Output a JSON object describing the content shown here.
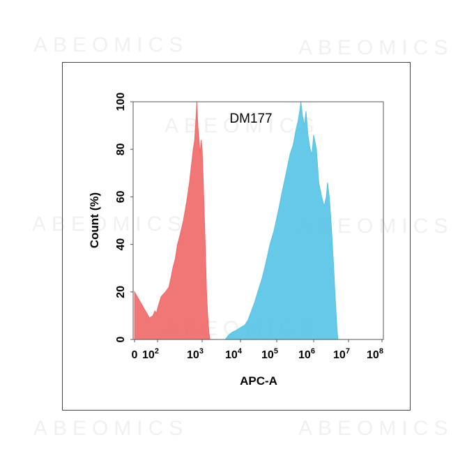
{
  "watermark": "ABEOMICS",
  "chart_data": {
    "type": "area",
    "title": "DM177",
    "xlabel": "APC-A",
    "ylabel": "Count (%)",
    "xscale": "log",
    "xlim": [
      0,
      100000000
    ],
    "ylim": [
      0,
      100
    ],
    "grid": false,
    "legend": "none",
    "x_ticks": [
      {
        "base": "0",
        "exp": ""
      },
      {
        "base": "10",
        "exp": "2"
      },
      {
        "base": "10",
        "exp": "3"
      },
      {
        "base": "10",
        "exp": "4"
      },
      {
        "base": "10",
        "exp": "5"
      },
      {
        "base": "10",
        "exp": "6"
      },
      {
        "base": "10",
        "exp": "7"
      },
      {
        "base": "10",
        "exp": "8"
      }
    ],
    "y_ticks": [
      "0",
      "20",
      "40",
      "60",
      "80",
      "100"
    ],
    "series": [
      {
        "color": "#f06868",
        "points": [
          [
            0,
            0
          ],
          [
            1,
            20
          ],
          [
            20,
            9
          ],
          [
            40,
            10
          ],
          [
            60,
            12
          ],
          [
            80,
            11
          ],
          [
            100,
            13
          ],
          [
            120,
            18
          ],
          [
            150,
            20
          ],
          [
            180,
            22
          ],
          [
            200,
            26
          ],
          [
            220,
            30
          ],
          [
            250,
            34
          ],
          [
            280,
            40
          ],
          [
            320,
            44
          ],
          [
            380,
            50
          ],
          [
            450,
            58
          ],
          [
            520,
            66
          ],
          [
            580,
            74
          ],
          [
            630,
            80
          ],
          [
            680,
            84
          ],
          [
            730,
            94
          ],
          [
            760,
            100
          ],
          [
            800,
            90
          ],
          [
            850,
            84
          ],
          [
            900,
            78
          ],
          [
            950,
            84
          ],
          [
            1000,
            80
          ],
          [
            1050,
            70
          ],
          [
            1100,
            60
          ],
          [
            1200,
            40
          ],
          [
            1300,
            20
          ],
          [
            1400,
            10
          ],
          [
            1500,
            3
          ],
          [
            1600,
            0
          ]
        ]
      },
      {
        "color": "#55c3e6",
        "points": [
          [
            4000,
            0
          ],
          [
            5000,
            2
          ],
          [
            6000,
            3
          ],
          [
            8000,
            4
          ],
          [
            10000,
            5
          ],
          [
            13000,
            6
          ],
          [
            16000,
            8
          ],
          [
            20000,
            12
          ],
          [
            25000,
            16
          ],
          [
            30000,
            20
          ],
          [
            40000,
            26
          ],
          [
            50000,
            32
          ],
          [
            65000,
            40
          ],
          [
            85000,
            46
          ],
          [
            110000,
            54
          ],
          [
            140000,
            62
          ],
          [
            180000,
            70
          ],
          [
            230000,
            78
          ],
          [
            280000,
            82
          ],
          [
            330000,
            88
          ],
          [
            380000,
            92
          ],
          [
            420000,
            96
          ],
          [
            450000,
            100
          ],
          [
            500000,
            94
          ],
          [
            560000,
            90
          ],
          [
            620000,
            96
          ],
          [
            700000,
            86
          ],
          [
            800000,
            80
          ],
          [
            900000,
            78
          ],
          [
            1000000,
            86
          ],
          [
            1200000,
            80
          ],
          [
            1400000,
            66
          ],
          [
            1700000,
            60
          ],
          [
            2000000,
            56
          ],
          [
            2300000,
            60
          ],
          [
            2500000,
            66
          ],
          [
            2800000,
            60
          ],
          [
            3200000,
            48
          ],
          [
            3700000,
            32
          ],
          [
            4200000,
            16
          ],
          [
            4700000,
            4
          ],
          [
            5000000,
            0
          ]
        ]
      }
    ]
  }
}
